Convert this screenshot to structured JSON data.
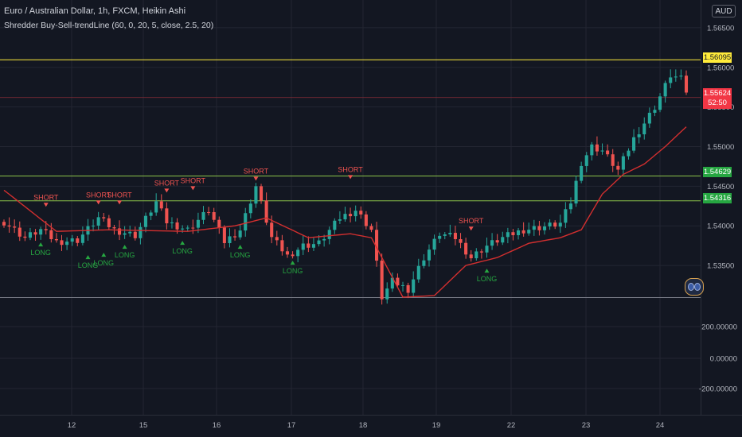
{
  "header": {
    "title": "Euro / Australian Dollar, 1h, FXCM, Heikin Ashi",
    "indicator": "Shredder Buy-Sell-trendLine (60, 0, 20, 5, close, 2.5, 20)",
    "currency_button": "AUD"
  },
  "price_tags": {
    "yellow": "1.56095",
    "red_price": "1.55624",
    "red_countdown": "52:50",
    "green1": "1.54629",
    "green2": "1.54316"
  },
  "colors": {
    "background": "#131722",
    "grid": "#232632",
    "up_candle": "#26a69a",
    "down_candle": "#ef5350",
    "trend_line": "#d32f2f",
    "short_signal": "#ef5350",
    "long_signal": "#26a641",
    "yellow_line": "#ffeb3b",
    "green_line": "#8bc34a"
  },
  "chart_data": {
    "type": "candlestick",
    "title": "Euro / Australian Dollar, 1h, FXCM, Heikin Ashi",
    "x_ticks": [
      "12",
      "15",
      "16",
      "17",
      "18",
      "19",
      "22",
      "23",
      "24"
    ],
    "price_ticks": [
      "1.56500",
      "1.56000",
      "1.55500",
      "1.55000",
      "1.54500",
      "1.54000",
      "1.53500"
    ],
    "price_range": [
      1.531,
      1.5685
    ],
    "horizontal_lines": [
      {
        "price": 1.56095,
        "color": "yellow"
      },
      {
        "price": 1.5562,
        "color": "red",
        "style": "thin"
      },
      {
        "price": 1.54629,
        "color": "green"
      },
      {
        "price": 1.54316,
        "color": "green"
      }
    ],
    "close_path": [
      [
        0,
        1.5405
      ],
      [
        4,
        1.5385
      ],
      [
        7,
        1.5395
      ],
      [
        10,
        1.538
      ],
      [
        14,
        1.5382
      ],
      [
        18,
        1.541
      ],
      [
        21,
        1.5395
      ],
      [
        25,
        1.5388
      ],
      [
        29,
        1.543
      ],
      [
        31,
        1.5405
      ],
      [
        35,
        1.5395
      ],
      [
        39,
        1.542
      ],
      [
        42,
        1.538
      ],
      [
        45,
        1.5395
      ],
      [
        48,
        1.545
      ],
      [
        51,
        1.5385
      ],
      [
        54,
        1.5362
      ],
      [
        57,
        1.5375
      ],
      [
        60,
        1.5378
      ],
      [
        64,
        1.541
      ],
      [
        67,
        1.542
      ],
      [
        70,
        1.5395
      ],
      [
        72,
        1.531
      ],
      [
        74,
        1.533
      ],
      [
        77,
        1.532
      ],
      [
        80,
        1.536
      ],
      [
        83,
        1.539
      ],
      [
        86,
        1.5385
      ],
      [
        89,
        1.536
      ],
      [
        92,
        1.5375
      ],
      [
        95,
        1.5385
      ],
      [
        99,
        1.5395
      ],
      [
        102,
        1.5398
      ],
      [
        106,
        1.5403
      ],
      [
        108,
        1.543
      ],
      [
        110,
        1.548
      ],
      [
        112,
        1.55
      ],
      [
        114,
        1.5495
      ],
      [
        117,
        1.547
      ],
      [
        120,
        1.551
      ],
      [
        124,
        1.555
      ],
      [
        127,
        1.559
      ],
      [
        129,
        1.5585
      ],
      [
        130,
        1.557
      ]
    ],
    "trend_line": [
      [
        0,
        1.5445
      ],
      [
        10,
        1.5393
      ],
      [
        20,
        1.5395
      ],
      [
        35,
        1.5393
      ],
      [
        44,
        1.54
      ],
      [
        50,
        1.541
      ],
      [
        58,
        1.5385
      ],
      [
        66,
        1.539
      ],
      [
        70,
        1.5385
      ],
      [
        76,
        1.531
      ],
      [
        82,
        1.5312
      ],
      [
        88,
        1.535
      ],
      [
        94,
        1.536
      ],
      [
        100,
        1.5378
      ],
      [
        106,
        1.5385
      ],
      [
        110,
        1.5395
      ],
      [
        114,
        1.544
      ],
      [
        118,
        1.5465
      ],
      [
        122,
        1.5478
      ],
      [
        126,
        1.55
      ],
      [
        130,
        1.5525
      ]
    ],
    "signals": [
      {
        "type": "SHORT",
        "bar": 8,
        "price": 1.5425
      },
      {
        "type": "SHORT",
        "bar": 18,
        "price": 1.5428
      },
      {
        "type": "SHORT",
        "bar": 22,
        "price": 1.5428
      },
      {
        "type": "SHORT",
        "bar": 31,
        "price": 1.5443
      },
      {
        "type": "SHORT",
        "bar": 36,
        "price": 1.5446
      },
      {
        "type": "SHORT",
        "bar": 48,
        "price": 1.5458
      },
      {
        "type": "SHORT",
        "bar": 66,
        "price": 1.546
      },
      {
        "type": "SHORT",
        "bar": 89,
        "price": 1.5395
      },
      {
        "type": "LONG",
        "bar": 7,
        "price": 1.5378
      },
      {
        "type": "LONG",
        "bar": 16,
        "price": 1.5362
      },
      {
        "type": "LONG",
        "bar": 19,
        "price": 1.5365
      },
      {
        "type": "LONG",
        "bar": 23,
        "price": 1.5375
      },
      {
        "type": "LONG",
        "bar": 34,
        "price": 1.538
      },
      {
        "type": "LONG",
        "bar": 45,
        "price": 1.5375
      },
      {
        "type": "LONG",
        "bar": 55,
        "price": 1.5355
      },
      {
        "type": "LONG",
        "bar": 92,
        "price": 1.5345
      }
    ],
    "oscillator": {
      "ticks": [
        "200.00000",
        "0.00000",
        "-200.00000"
      ],
      "range": [
        -300,
        300
      ]
    }
  }
}
